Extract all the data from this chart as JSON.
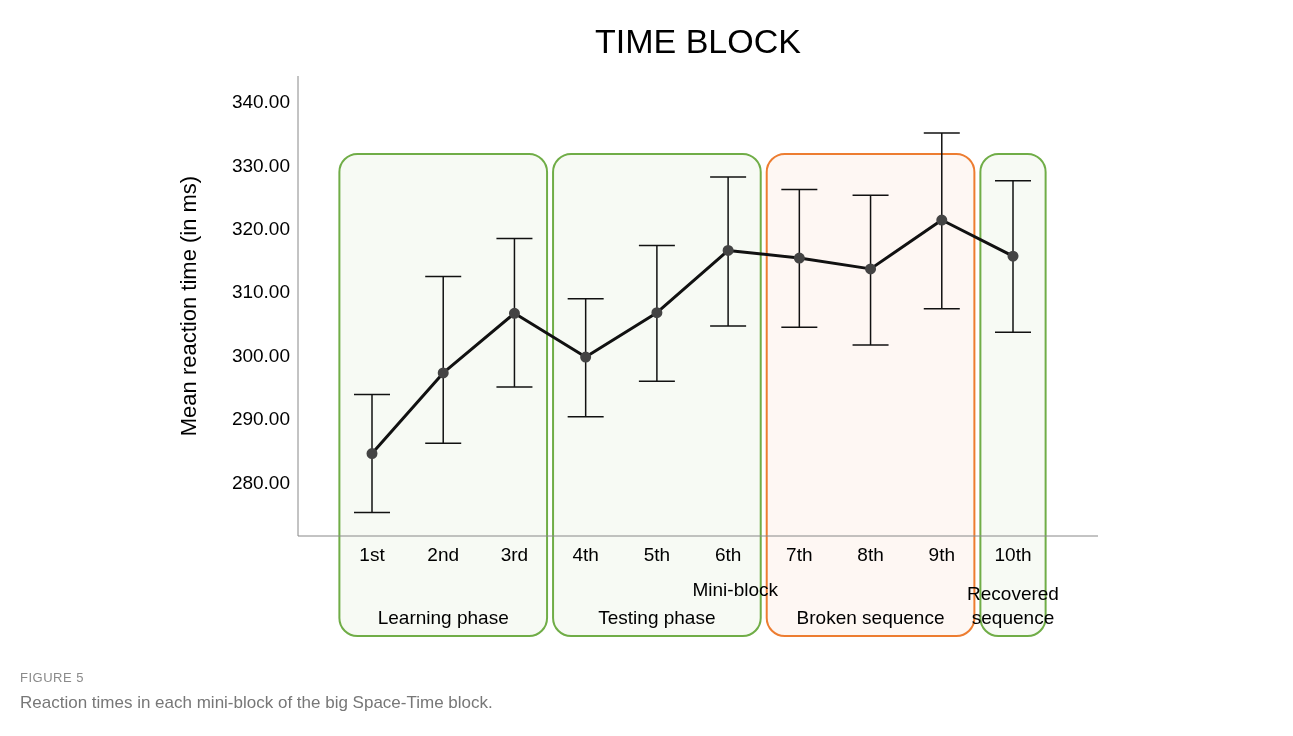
{
  "chart_data": {
    "type": "line",
    "title": "TIME BLOCK",
    "xlabel": "Mini-block",
    "ylabel": "Mean reaction time (in ms)",
    "categories": [
      "1st",
      "2nd",
      "3rd",
      "4th",
      "5th",
      "6th",
      "7th",
      "8th",
      "9th",
      "10th"
    ],
    "series": [
      {
        "color": "#111111",
        "values": [
          284.5,
          297.2,
          306.6,
          299.7,
          306.7,
          316.5,
          315.3,
          313.6,
          321.3,
          315.6
        ],
        "errors": [
          [
            275.2,
            293.8
          ],
          [
            286.1,
            312.4
          ],
          [
            295.0,
            318.4
          ],
          [
            290.3,
            308.9
          ],
          [
            295.9,
            317.3
          ],
          [
            304.6,
            328.1
          ],
          [
            304.4,
            326.1
          ],
          [
            301.6,
            325.2
          ],
          [
            307.3,
            335.0
          ],
          [
            303.6,
            327.5
          ]
        ]
      }
    ],
    "ylim": [
      271.5,
      344
    ],
    "yticks": [
      {
        "value": 280,
        "label": "280.00"
      },
      {
        "value": 290,
        "label": "290.00"
      },
      {
        "value": 300,
        "label": "300.00"
      },
      {
        "value": 310,
        "label": "310.00"
      },
      {
        "value": 320,
        "label": "320.00"
      },
      {
        "value": 330,
        "label": "330.00"
      },
      {
        "value": 340,
        "label": "340.00"
      }
    ],
    "grid": false,
    "marker": "circle",
    "line_style": "solid",
    "bands": [
      {
        "axis": "x",
        "from": "1st",
        "to": "3rd",
        "label": "Learning phase",
        "color": "#70ad47"
      },
      {
        "axis": "x",
        "from": "4th",
        "to": "6th",
        "label": "Testing phase",
        "color": "#70ad47"
      },
      {
        "axis": "x",
        "from": "7th",
        "to": "9th",
        "label": "Broken sequence",
        "color": "#ed7d31"
      },
      {
        "axis": "x",
        "from": "10th",
        "to": "10th",
        "label": "Recovered sequence",
        "color": "#70ad47"
      }
    ],
    "annotations": [
      "FIGURE 5",
      "Reaction times in each mini-block of the big Space-Time block."
    ]
  }
}
